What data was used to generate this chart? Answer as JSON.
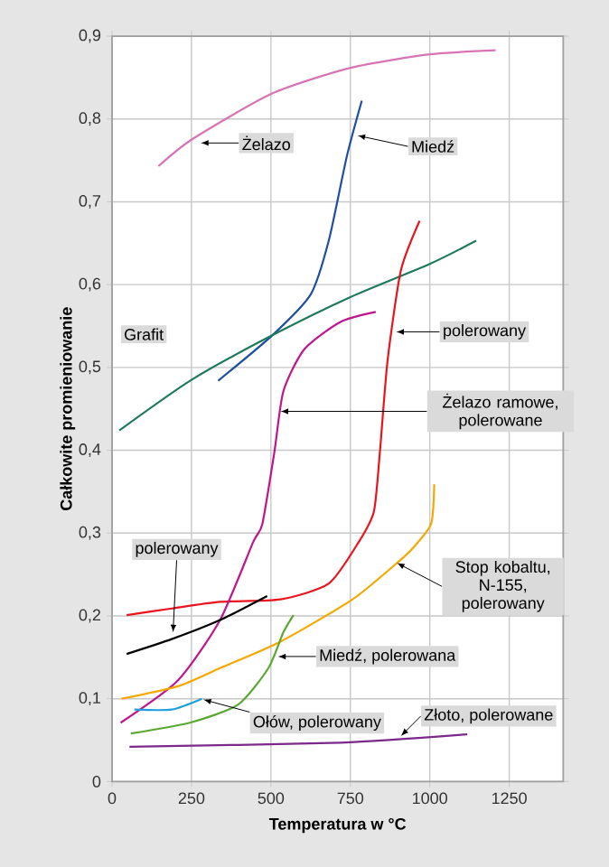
{
  "chart_data": {
    "type": "line",
    "xlabel": "Temperatura w °C",
    "ylabel": "Całkowite promieniowanie",
    "xlim": [
      0,
      1420
    ],
    "ylim": [
      0,
      0.9
    ],
    "xticks": [
      0,
      250,
      500,
      750,
      1000,
      1250
    ],
    "yticks": [
      0,
      {
        "value": 0.1,
        "label": "0,1"
      },
      {
        "value": 0.2,
        "label": "0,2"
      },
      {
        "value": 0.3,
        "label": "0,3"
      },
      {
        "value": 0.4,
        "label": "0,4"
      },
      {
        "value": 0.5,
        "label": "0,5"
      },
      {
        "value": 0.6,
        "label": "0,6"
      },
      {
        "value": 0.7,
        "label": "0,7"
      },
      {
        "value": 0.8,
        "label": "0,8"
      },
      {
        "value": 0.9,
        "label": "0,9"
      }
    ],
    "grid": true,
    "marker": "none",
    "line_style": "solid",
    "series": [
      {
        "color": "#d874b4",
        "x": [
          146,
          254,
          505,
          753,
          1000,
          1207
        ],
        "values": [
          0.743,
          0.776,
          0.831,
          0.862,
          0.878,
          0.883
        ]
      },
      {
        "color": "#1f4fa0",
        "x": [
          334,
          505,
          625,
          682,
          739,
          786
        ],
        "values": [
          0.484,
          0.539,
          0.588,
          0.653,
          0.755,
          0.822
        ]
      },
      {
        "color": "#1e7a5a",
        "x": [
          23,
          250,
          505,
          750,
          1000,
          1146
        ],
        "values": [
          0.424,
          0.485,
          0.539,
          0.585,
          0.625,
          0.653
        ]
      },
      {
        "color": "#e8141e",
        "x": [
          46,
          188,
          340,
          530,
          682,
          776,
          824,
          843,
          867,
          909,
          968
        ],
        "values": [
          0.201,
          0.209,
          0.217,
          0.22,
          0.239,
          0.289,
          0.326,
          0.398,
          0.508,
          0.617,
          0.677
        ]
      },
      {
        "color": "#c0168c",
        "x": [
          27,
          207,
          340,
          444,
          473,
          511,
          539,
          605,
          719,
          830
        ],
        "values": [
          0.071,
          0.122,
          0.195,
          0.289,
          0.311,
          0.398,
          0.471,
          0.522,
          0.555,
          0.567
        ]
      },
      {
        "color": "#000000",
        "x": [
          46,
          188,
          340,
          488
        ],
        "values": [
          0.154,
          0.172,
          0.195,
          0.224
        ]
      },
      {
        "color": "#f5a800",
        "x": [
          30,
          207,
          340,
          530,
          757,
          909,
          947,
          1004,
          1014
        ],
        "values": [
          0.1,
          0.115,
          0.137,
          0.169,
          0.22,
          0.268,
          0.282,
          0.311,
          0.359
        ]
      },
      {
        "color": "#5aa832",
        "x": [
          59,
          245,
          397,
          492,
          539,
          571
        ],
        "values": [
          0.058,
          0.071,
          0.093,
          0.137,
          0.18,
          0.201
        ]
      },
      {
        "color": "#1ea0dc",
        "x": [
          70,
          188,
          283
        ],
        "values": [
          0.087,
          0.087,
          0.1
        ]
      },
      {
        "color": "#7b2a8a",
        "x": [
          55,
          719,
          1118
        ],
        "values": [
          0.042,
          0.047,
          0.057
        ]
      }
    ],
    "annotations": [
      {
        "text": "Żelazo",
        "x": 279,
        "y": 0.771
      },
      {
        "text": "Miedź",
        "x": 772,
        "y": 0.78
      },
      "Grafit",
      {
        "text": "polerowany",
        "x": 894,
        "y": 0.543
      },
      {
        "text": "Żelazo ramowe, polerowane",
        "x": 530,
        "y": 0.447
      },
      {
        "text": "polerowany",
        "x": 192,
        "y": 0.18
      },
      {
        "text": "Stop kobaltu, N-155, polerowany",
        "x": 896,
        "y": 0.264
      },
      {
        "text": "Miedź, polerowana",
        "x": 522,
        "y": 0.151
      },
      {
        "text": "Ołów, polerowany",
        "x": 287,
        "y": 0.099
      },
      {
        "text": "Złoto, polerowane",
        "x": 909,
        "y": 0.055
      }
    ]
  }
}
